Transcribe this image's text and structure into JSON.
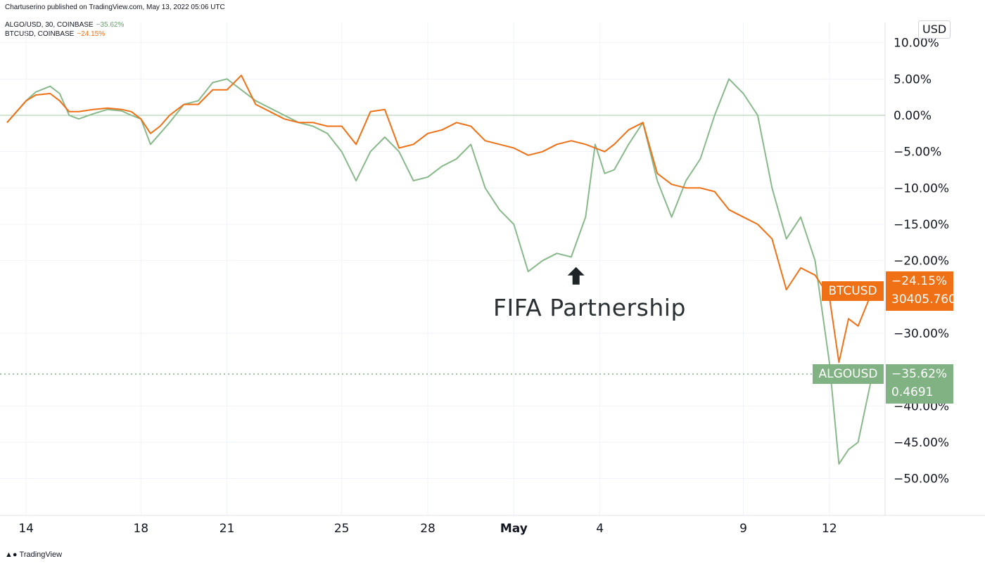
{
  "header": {
    "publisher": "Chartuserino published on TradingView.com, May 13, 2022 05:06 UTC",
    "legend": [
      {
        "label": "ALGO/USD, 30, COINBASE",
        "value": "−35.62%",
        "color": "#6b9e6f"
      },
      {
        "label": "BTCUSD, COINBASE",
        "value": "−24.15%",
        "color": "#f07016"
      }
    ]
  },
  "axis_unit": "USD",
  "annotation": {
    "text": "FIFA Partnership",
    "icon": "arrow-up-icon"
  },
  "price_tags": {
    "btc": {
      "name": "BTCUSD",
      "pct": "−24.15%",
      "price": "30405.7600"
    },
    "algo": {
      "name": "ALGOUSD",
      "pct": "−35.62%",
      "price": "0.4691"
    }
  },
  "footer": {
    "brand": "TradingView",
    "logo_icon": "tradingview-logo-icon"
  },
  "colors": {
    "btc": "#f07016",
    "algo": "#88b98a",
    "algo_tag": "#80b283",
    "zero_line": "#a5c9a6"
  },
  "chart_data": {
    "type": "line",
    "y_unit": "%",
    "ylim": [
      -55,
      12
    ],
    "y_ticks": [
      {
        "v": 10,
        "label": "10.00%"
      },
      {
        "v": 5,
        "label": "5.00%"
      },
      {
        "v": 0,
        "label": "0.00%"
      },
      {
        "v": -5,
        "label": "−5.00%"
      },
      {
        "v": -10,
        "label": "−10.00%"
      },
      {
        "v": -15,
        "label": "−15.00%"
      },
      {
        "v": -20,
        "label": "−20.00%"
      },
      {
        "v": -30,
        "label": "−30.00%"
      },
      {
        "v": -40,
        "label": "−40.00%"
      },
      {
        "v": -45,
        "label": "−45.00%"
      },
      {
        "v": -50,
        "label": "−50.00%"
      }
    ],
    "x_ticks": [
      {
        "date": "2022-04-14",
        "label": "14",
        "bold": false
      },
      {
        "date": "2022-04-18",
        "label": "18",
        "bold": false
      },
      {
        "date": "2022-04-21",
        "label": "21",
        "bold": false
      },
      {
        "date": "2022-04-25",
        "label": "25",
        "bold": false
      },
      {
        "date": "2022-04-28",
        "label": "28",
        "bold": false
      },
      {
        "date": "2022-05-01",
        "label": "May",
        "bold": true
      },
      {
        "date": "2022-05-04",
        "label": "4",
        "bold": false
      },
      {
        "date": "2022-05-09",
        "label": "9",
        "bold": false
      },
      {
        "date": "2022-05-12",
        "label": "12",
        "bold": false
      }
    ],
    "xlim": [
      "2022-04-13 08:00",
      "2022-05-13 12:00"
    ],
    "annotation_point": {
      "date": "2022-05-03 04:00",
      "y": -20.5
    },
    "last_values": {
      "ALGOUSD": -35.62,
      "BTCUSD": -24.15
    },
    "series": [
      {
        "name": "ALGOUSD",
        "points": [
          [
            "2022-04-13 08:00",
            -1.0
          ],
          [
            "2022-04-13 16:00",
            0.5
          ],
          [
            "2022-04-14 00:00",
            2.0
          ],
          [
            "2022-04-14 08:00",
            3.2
          ],
          [
            "2022-04-14 20:00",
            4.0
          ],
          [
            "2022-04-15 04:00",
            3.0
          ],
          [
            "2022-04-15 12:00",
            0.0
          ],
          [
            "2022-04-15 20:00",
            -0.5
          ],
          [
            "2022-04-16 08:00",
            0.2
          ],
          [
            "2022-04-16 20:00",
            0.8
          ],
          [
            "2022-04-17 08:00",
            0.6
          ],
          [
            "2022-04-17 16:00",
            0.0
          ],
          [
            "2022-04-18 00:00",
            -0.5
          ],
          [
            "2022-04-18 08:00",
            -4.0
          ],
          [
            "2022-04-18 16:00",
            -2.5
          ],
          [
            "2022-04-19 00:00",
            -1.0
          ],
          [
            "2022-04-19 12:00",
            1.5
          ],
          [
            "2022-04-20 00:00",
            2.0
          ],
          [
            "2022-04-20 12:00",
            4.5
          ],
          [
            "2022-04-21 00:00",
            5.0
          ],
          [
            "2022-04-21 12:00",
            3.5
          ],
          [
            "2022-04-22 00:00",
            2.0
          ],
          [
            "2022-04-22 12:00",
            1.0
          ],
          [
            "2022-04-23 00:00",
            0.0
          ],
          [
            "2022-04-23 12:00",
            -1.0
          ],
          [
            "2022-04-24 00:00",
            -1.5
          ],
          [
            "2022-04-24 12:00",
            -2.5
          ],
          [
            "2022-04-25 00:00",
            -5.0
          ],
          [
            "2022-04-25 12:00",
            -9.0
          ],
          [
            "2022-04-26 00:00",
            -5.0
          ],
          [
            "2022-04-26 12:00",
            -3.0
          ],
          [
            "2022-04-27 00:00",
            -5.0
          ],
          [
            "2022-04-27 12:00",
            -9.0
          ],
          [
            "2022-04-28 00:00",
            -8.5
          ],
          [
            "2022-04-28 12:00",
            -7.0
          ],
          [
            "2022-04-29 00:00",
            -6.0
          ],
          [
            "2022-04-29 12:00",
            -4.0
          ],
          [
            "2022-04-30 00:00",
            -10.0
          ],
          [
            "2022-04-30 12:00",
            -13.0
          ],
          [
            "2022-05-01 00:00",
            -15.0
          ],
          [
            "2022-05-01 12:00",
            -21.5
          ],
          [
            "2022-05-02 00:00",
            -20.0
          ],
          [
            "2022-05-02 12:00",
            -19.0
          ],
          [
            "2022-05-03 00:00",
            -19.5
          ],
          [
            "2022-05-03 12:00",
            -14.0
          ],
          [
            "2022-05-03 20:00",
            -4.0
          ],
          [
            "2022-05-04 04:00",
            -8.0
          ],
          [
            "2022-05-04 12:00",
            -7.5
          ],
          [
            "2022-05-05 00:00",
            -4.0
          ],
          [
            "2022-05-05 12:00",
            -1.0
          ],
          [
            "2022-05-06 00:00",
            -9.0
          ],
          [
            "2022-05-06 12:00",
            -14.0
          ],
          [
            "2022-05-07 00:00",
            -9.0
          ],
          [
            "2022-05-07 12:00",
            -6.0
          ],
          [
            "2022-05-08 00:00",
            0.0
          ],
          [
            "2022-05-08 12:00",
            5.0
          ],
          [
            "2022-05-09 00:00",
            3.0
          ],
          [
            "2022-05-09 12:00",
            0.0
          ],
          [
            "2022-05-10 00:00",
            -10.0
          ],
          [
            "2022-05-10 12:00",
            -17.0
          ],
          [
            "2022-05-11 00:00",
            -14.0
          ],
          [
            "2022-05-11 12:00",
            -20.0
          ],
          [
            "2022-05-12 00:00",
            -34.0
          ],
          [
            "2022-05-12 08:00",
            -48.0
          ],
          [
            "2022-05-12 16:00",
            -46.0
          ],
          [
            "2022-05-13 00:00",
            -45.0
          ],
          [
            "2022-05-13 12:00",
            -35.62
          ]
        ]
      },
      {
        "name": "BTCUSD",
        "points": [
          [
            "2022-04-13 08:00",
            -1.0
          ],
          [
            "2022-04-13 16:00",
            0.5
          ],
          [
            "2022-04-14 00:00",
            2.0
          ],
          [
            "2022-04-14 08:00",
            2.8
          ],
          [
            "2022-04-14 20:00",
            3.0
          ],
          [
            "2022-04-15 04:00",
            2.0
          ],
          [
            "2022-04-15 12:00",
            0.5
          ],
          [
            "2022-04-15 20:00",
            0.5
          ],
          [
            "2022-04-16 08:00",
            0.8
          ],
          [
            "2022-04-16 20:00",
            1.0
          ],
          [
            "2022-04-17 08:00",
            0.8
          ],
          [
            "2022-04-17 16:00",
            0.5
          ],
          [
            "2022-04-18 00:00",
            -0.5
          ],
          [
            "2022-04-18 08:00",
            -2.5
          ],
          [
            "2022-04-18 16:00",
            -1.5
          ],
          [
            "2022-04-19 00:00",
            0.0
          ],
          [
            "2022-04-19 12:00",
            1.5
          ],
          [
            "2022-04-20 00:00",
            1.5
          ],
          [
            "2022-04-20 12:00",
            3.5
          ],
          [
            "2022-04-21 00:00",
            3.5
          ],
          [
            "2022-04-21 12:00",
            5.5
          ],
          [
            "2022-04-22 00:00",
            1.5
          ],
          [
            "2022-04-22 12:00",
            0.5
          ],
          [
            "2022-04-23 00:00",
            -0.5
          ],
          [
            "2022-04-23 12:00",
            -1.0
          ],
          [
            "2022-04-24 00:00",
            -1.0
          ],
          [
            "2022-04-24 12:00",
            -1.5
          ],
          [
            "2022-04-25 00:00",
            -1.5
          ],
          [
            "2022-04-25 12:00",
            -4.0
          ],
          [
            "2022-04-26 00:00",
            0.5
          ],
          [
            "2022-04-26 12:00",
            0.8
          ],
          [
            "2022-04-27 00:00",
            -4.5
          ],
          [
            "2022-04-27 12:00",
            -4.0
          ],
          [
            "2022-04-28 00:00",
            -2.5
          ],
          [
            "2022-04-28 12:00",
            -2.0
          ],
          [
            "2022-04-29 00:00",
            -1.0
          ],
          [
            "2022-04-29 12:00",
            -1.5
          ],
          [
            "2022-04-30 00:00",
            -3.5
          ],
          [
            "2022-04-30 12:00",
            -4.0
          ],
          [
            "2022-05-01 00:00",
            -4.5
          ],
          [
            "2022-05-01 12:00",
            -5.5
          ],
          [
            "2022-05-02 00:00",
            -5.0
          ],
          [
            "2022-05-02 12:00",
            -4.0
          ],
          [
            "2022-05-03 00:00",
            -3.5
          ],
          [
            "2022-05-03 12:00",
            -4.0
          ],
          [
            "2022-05-03 20:00",
            -4.5
          ],
          [
            "2022-05-04 04:00",
            -5.0
          ],
          [
            "2022-05-04 12:00",
            -4.0
          ],
          [
            "2022-05-05 00:00",
            -2.0
          ],
          [
            "2022-05-05 12:00",
            -1.0
          ],
          [
            "2022-05-06 00:00",
            -8.0
          ],
          [
            "2022-05-06 12:00",
            -9.5
          ],
          [
            "2022-05-07 00:00",
            -10.0
          ],
          [
            "2022-05-07 12:00",
            -10.0
          ],
          [
            "2022-05-08 00:00",
            -10.5
          ],
          [
            "2022-05-08 12:00",
            -13.0
          ],
          [
            "2022-05-09 00:00",
            -14.0
          ],
          [
            "2022-05-09 12:00",
            -15.0
          ],
          [
            "2022-05-10 00:00",
            -17.0
          ],
          [
            "2022-05-10 12:00",
            -24.0
          ],
          [
            "2022-05-11 00:00",
            -21.0
          ],
          [
            "2022-05-11 12:00",
            -22.0
          ],
          [
            "2022-05-12 00:00",
            -25.0
          ],
          [
            "2022-05-12 08:00",
            -34.0
          ],
          [
            "2022-05-12 16:00",
            -28.0
          ],
          [
            "2022-05-13 00:00",
            -29.0
          ],
          [
            "2022-05-13 12:00",
            -24.15
          ]
        ]
      }
    ]
  }
}
